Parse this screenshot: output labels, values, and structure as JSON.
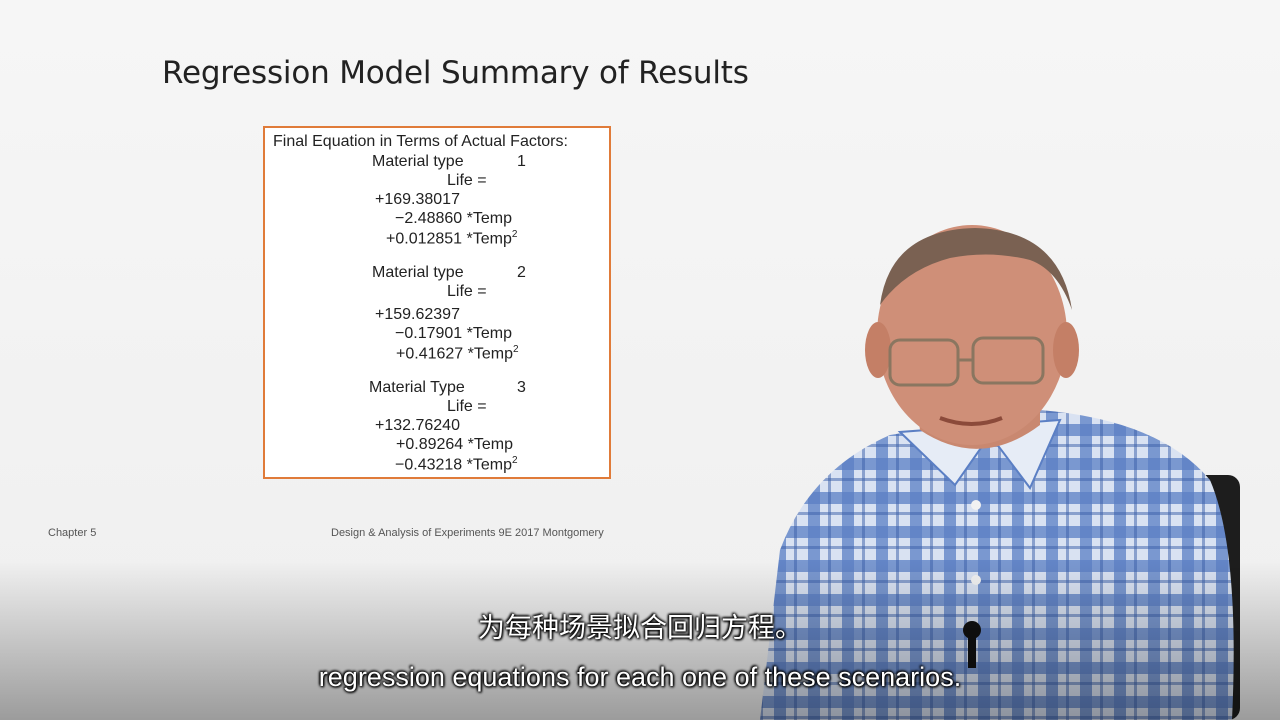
{
  "slide": {
    "title": "Regression Model Summary of Results",
    "box_header": "Final Equation in Terms of Actual Factors:",
    "models": [
      {
        "label": "Material type",
        "number": "1",
        "response": "Life =",
        "intercept": "+169.38017",
        "linear_coef": "−2.48860",
        "linear_term": "*Temp",
        "quad_coef": "+0.012851",
        "quad_term": "*Temp",
        "quad_exp": "2"
      },
      {
        "label": "Material type",
        "number": "2",
        "response": "Life =",
        "intercept": "+159.62397",
        "linear_coef": "−0.17901",
        "linear_term": "*Temp",
        "quad_coef": "+0.41627",
        "quad_term": "*Temp",
        "quad_exp": "2"
      },
      {
        "label": "Material Type",
        "number": "3",
        "response": "Life =",
        "intercept": "+132.76240",
        "linear_coef": "+0.89264",
        "linear_term": "*Temp",
        "quad_coef": "−0.43218",
        "quad_term": "*Temp",
        "quad_exp": "2"
      }
    ],
    "footer_left": "Chapter 5",
    "footer_center": "Design & Analysis of Experiments 9E 2017 Montgomery"
  },
  "subtitles": {
    "chinese": "为每种场景拟合回归方程。",
    "english": "regression equations for each one of these scenarios."
  },
  "colors": {
    "box_border": "#e07b39",
    "shirt_blue": "#5b7fc4"
  }
}
